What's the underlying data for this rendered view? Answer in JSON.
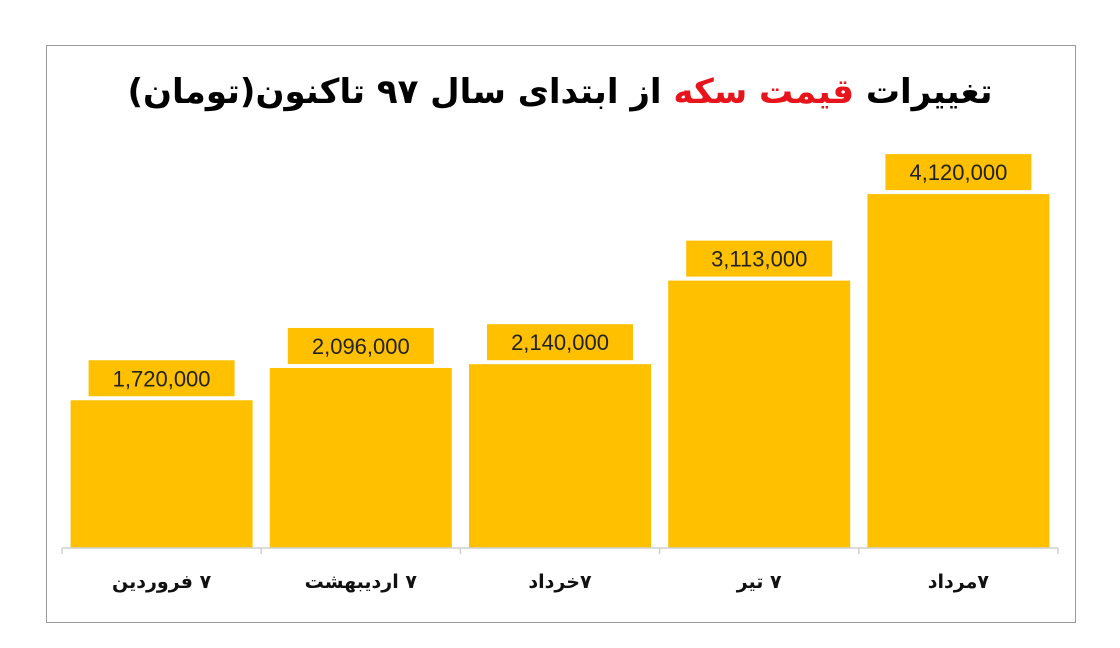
{
  "chart_data": {
    "type": "bar",
    "title": "تغییرات قیمت سکه از ابتدای سال ۹۷ تاکنون(تومان)",
    "title_parts": {
      "before": "تغییرات ",
      "highlight": "قیمت سکه",
      "after": " از ابتدای سال ۹۷ تاکنون(تومان)"
    },
    "categories": [
      "۷ فروردین",
      "۷ اردیبهشت",
      "۷خرداد",
      "۷ تیر",
      "۷مرداد"
    ],
    "values": [
      1720000,
      2096000,
      2140000,
      3113000,
      4120000
    ],
    "value_labels": [
      "1,720,000",
      "2,096,000",
      "2,140,000",
      "3,113,000",
      "4,120,000"
    ],
    "ylim": [
      0,
      4750000
    ],
    "grid": false,
    "legend": "none",
    "xlabel": "",
    "ylabel": "",
    "colors": {
      "bar": "#ffc000",
      "highlight_text": "#e8141b",
      "frame": "#9a9a9a",
      "axis": "#d0d0d0"
    }
  }
}
